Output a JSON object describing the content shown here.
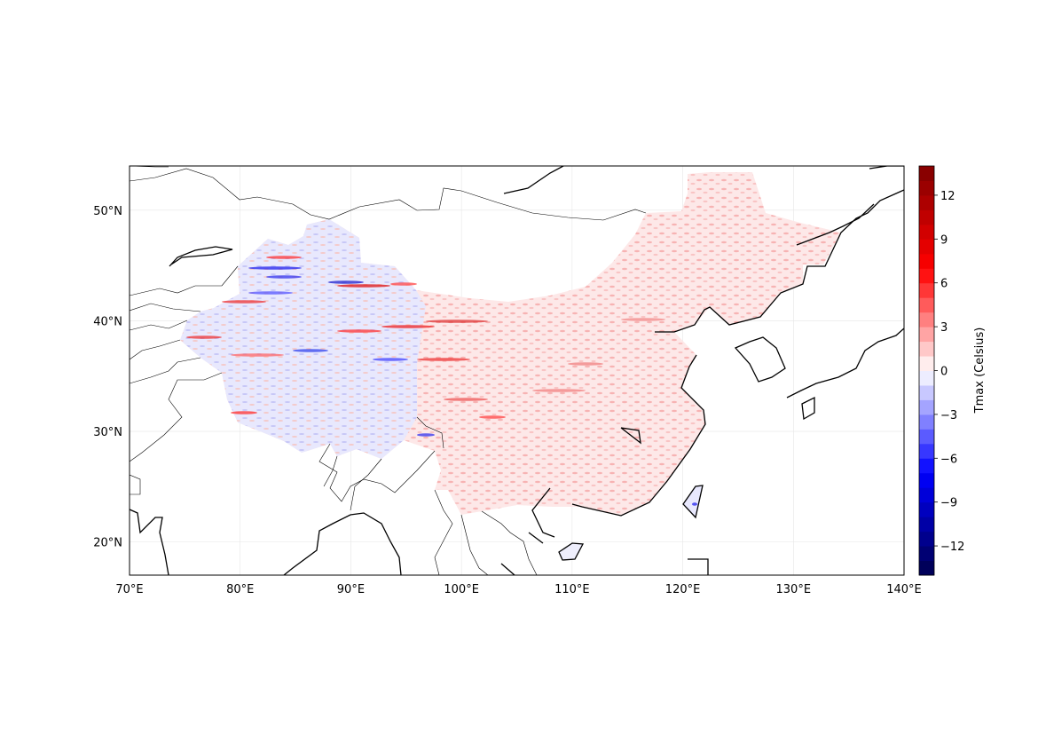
{
  "map": {
    "lon_range": [
      70,
      140
    ],
    "lat_range": [
      17,
      54
    ],
    "x_ticks": [
      "70°E",
      "80°E",
      "90°E",
      "100°E",
      "110°E",
      "120°E",
      "130°E",
      "140°E"
    ],
    "y_ticks": [
      "20°N",
      "30°N",
      "40°N",
      "50°N"
    ],
    "gridlines": true
  },
  "colorbar": {
    "label": "Tmax (Celsius)",
    "ticks": [
      "12",
      "9",
      "6",
      "3",
      "0",
      "−3",
      "−6",
      "−9",
      "−12"
    ],
    "range": [
      -14,
      14
    ],
    "colormap": "seismic"
  },
  "chart_data": {
    "type": "heatmap",
    "variable": "Tmax (Celsius)",
    "lon_range": [
      70,
      140
    ],
    "lat_range": [
      17,
      54
    ],
    "value_range": [
      -14,
      14
    ],
    "colorbar_ticks": [
      12,
      9,
      6,
      3,
      0,
      -3,
      -6,
      -9,
      -12
    ],
    "regions": [
      {
        "lon": [
          72,
          97
        ],
        "lat": [
          35,
          49
        ],
        "value": -0.5
      },
      {
        "lon": [
          95,
          135
        ],
        "lat": [
          20,
          53
        ],
        "value": 1
      }
    ]
  }
}
